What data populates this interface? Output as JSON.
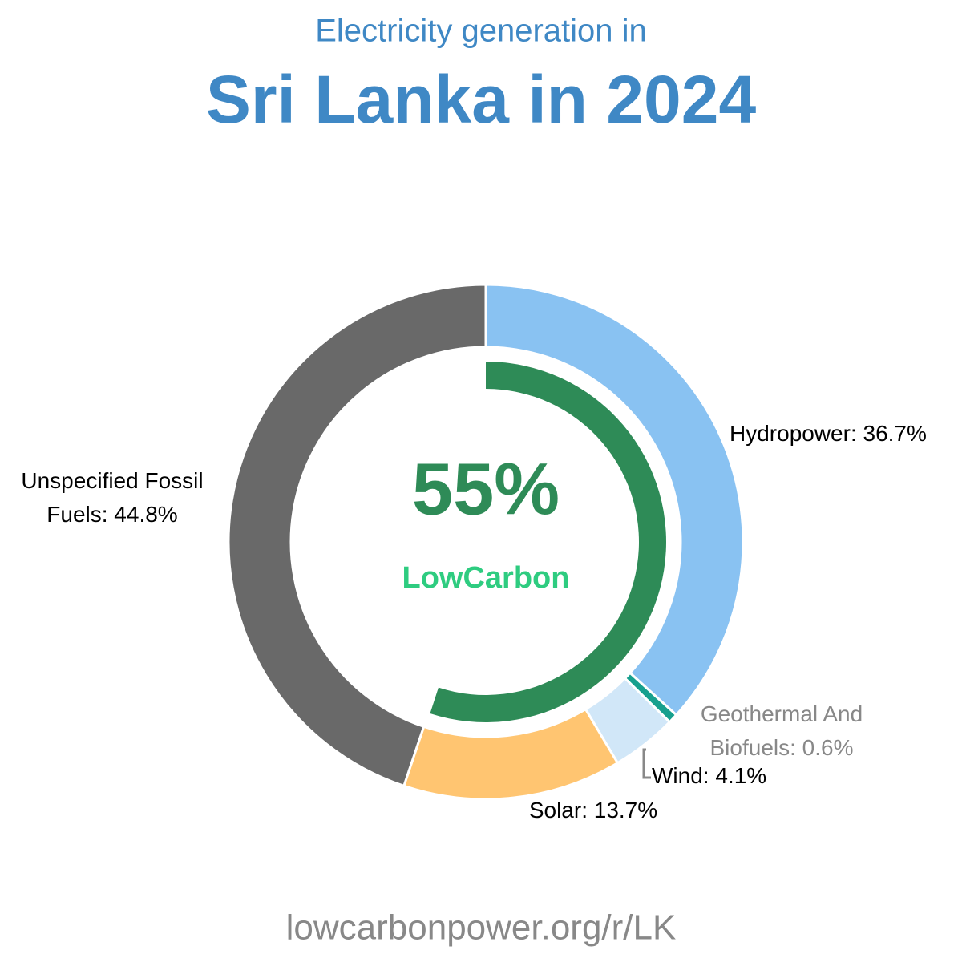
{
  "chart_data": {
    "type": "donut",
    "subtitle": "Electricity generation in",
    "title": "Sri Lanka in 2024",
    "values": [
      36.7,
      0.6,
      4.1,
      13.7,
      44.8
    ],
    "value_labels": [
      [
        "Hydropower: 36.7%"
      ],
      [
        "Geothermal And",
        "Biofuels: 0.6%"
      ],
      [
        "Wind: 4.1%"
      ],
      [
        "Solar: 13.7%"
      ],
      [
        "Unspecified Fossil",
        "Fuels: 44.8%"
      ]
    ],
    "colors": [
      "#89c2f2",
      "#17a08e",
      "#d1e7f8",
      "#ffc571",
      "#696969"
    ],
    "low_carbon": {
      "value": 55,
      "label": "55%",
      "name": "LowCarbon",
      "color": "#2e8b57"
    },
    "footer": "lowcarbonpower.org/r/LK"
  }
}
